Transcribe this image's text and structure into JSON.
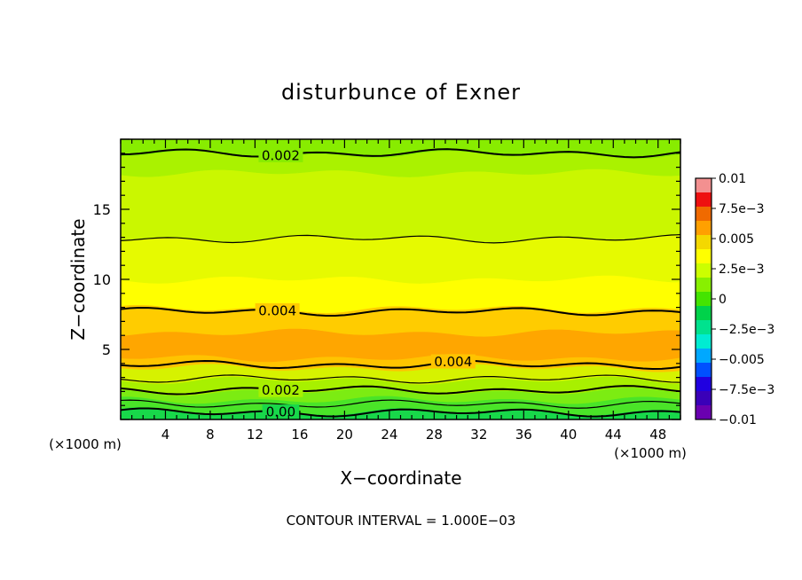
{
  "chart_data": {
    "type": "heatmap",
    "title": "disturbunce of Exner",
    "xlabel": "X−coordinate",
    "ylabel": "Z−coordinate",
    "x_unit_left": "(×1000 m)",
    "x_unit_right": "(×1000 m)",
    "xlim": [
      0,
      50
    ],
    "ylim": [
      0,
      20
    ],
    "x_ticks": [
      "4",
      "8",
      "12",
      "16",
      "20",
      "24",
      "28",
      "32",
      "36",
      "40",
      "44",
      "48"
    ],
    "y_ticks": [
      "5",
      "10",
      "15"
    ],
    "colorbar": {
      "range": [
        -0.01,
        0.01
      ],
      "labels": [
        "0.01",
        "7.5e−3",
        "0.005",
        "2.5e−3",
        "0",
        "−2.5e−3",
        "−0.005",
        "−7.5e−3",
        "−0.01"
      ],
      "colors": [
        "#f39090",
        "#ee1010",
        "#f06a00",
        "#ffa000",
        "#f4d800",
        "#ffff00",
        "#ccff00",
        "#88f000",
        "#44e400",
        "#00d24a",
        "#00e28e",
        "#00ecd2",
        "#00a8ff",
        "#0050ff",
        "#2000e0",
        "#3a00b8",
        "#6a00b0"
      ]
    },
    "bands": [
      {
        "z_bottom": 0.0,
        "z_top": 0.6,
        "value": 0.0005,
        "color": "#18d84a"
      },
      {
        "z_bottom": 0.6,
        "z_top": 1.4,
        "value": 0.001,
        "color": "#4ae428"
      },
      {
        "z_bottom": 1.4,
        "z_top": 2.0,
        "value": 0.0018,
        "color": "#7cec12"
      },
      {
        "z_bottom": 2.0,
        "z_top": 2.8,
        "value": 0.0023,
        "color": "#a8f000"
      },
      {
        "z_bottom": 2.8,
        "z_top": 3.7,
        "value": 0.0033,
        "color": "#d6f200"
      },
      {
        "z_bottom": 3.7,
        "z_top": 4.4,
        "value": 0.0043,
        "color": "#ffc400"
      },
      {
        "z_bottom": 4.4,
        "z_top": 6.2,
        "value": 0.0048,
        "color": "#ffa600"
      },
      {
        "z_bottom": 6.2,
        "z_top": 7.9,
        "value": 0.0043,
        "color": "#ffcc00"
      },
      {
        "z_bottom": 7.9,
        "z_top": 10.0,
        "value": 0.0037,
        "color": "#ffff00"
      },
      {
        "z_bottom": 10.0,
        "z_top": 12.9,
        "value": 0.0032,
        "color": "#e6fa00"
      },
      {
        "z_bottom": 12.9,
        "z_top": 17.6,
        "value": 0.0026,
        "color": "#caf700"
      },
      {
        "z_bottom": 17.6,
        "z_top": 18.9,
        "value": 0.0022,
        "color": "#aaf200"
      },
      {
        "z_bottom": 18.9,
        "z_top": 20.0,
        "value": 0.0018,
        "color": "#88ec00"
      }
    ],
    "contours": [
      {
        "level": "0.00",
        "label": "0.00",
        "z": 0.5,
        "label_x": 14.3,
        "labeled": true
      },
      {
        "level": "0.001",
        "label": "",
        "z": 1.1,
        "labeled": false
      },
      {
        "level": "0.002",
        "label": "0.002",
        "z": 2.1,
        "label_x": 14.3,
        "labeled": true
      },
      {
        "level": "0.003",
        "label": "",
        "z": 2.9,
        "labeled": false
      },
      {
        "level": "0.004",
        "label": "0.004",
        "z": 3.9,
        "label_x": 29.7,
        "labeled": true
      },
      {
        "level": "0.004",
        "label": "0.004",
        "z": 7.7,
        "label_x": 14.0,
        "labeled": true
      },
      {
        "level": "0.003",
        "label": "",
        "z": 12.9,
        "labeled": false
      },
      {
        "level": "0.002",
        "label": "0.002",
        "z": 19.0,
        "label_x": 14.3,
        "labeled": true
      }
    ],
    "footer": "CONTOUR INTERVAL = 1.000E−03",
    "grid": false,
    "legend": "colorbar-right"
  }
}
